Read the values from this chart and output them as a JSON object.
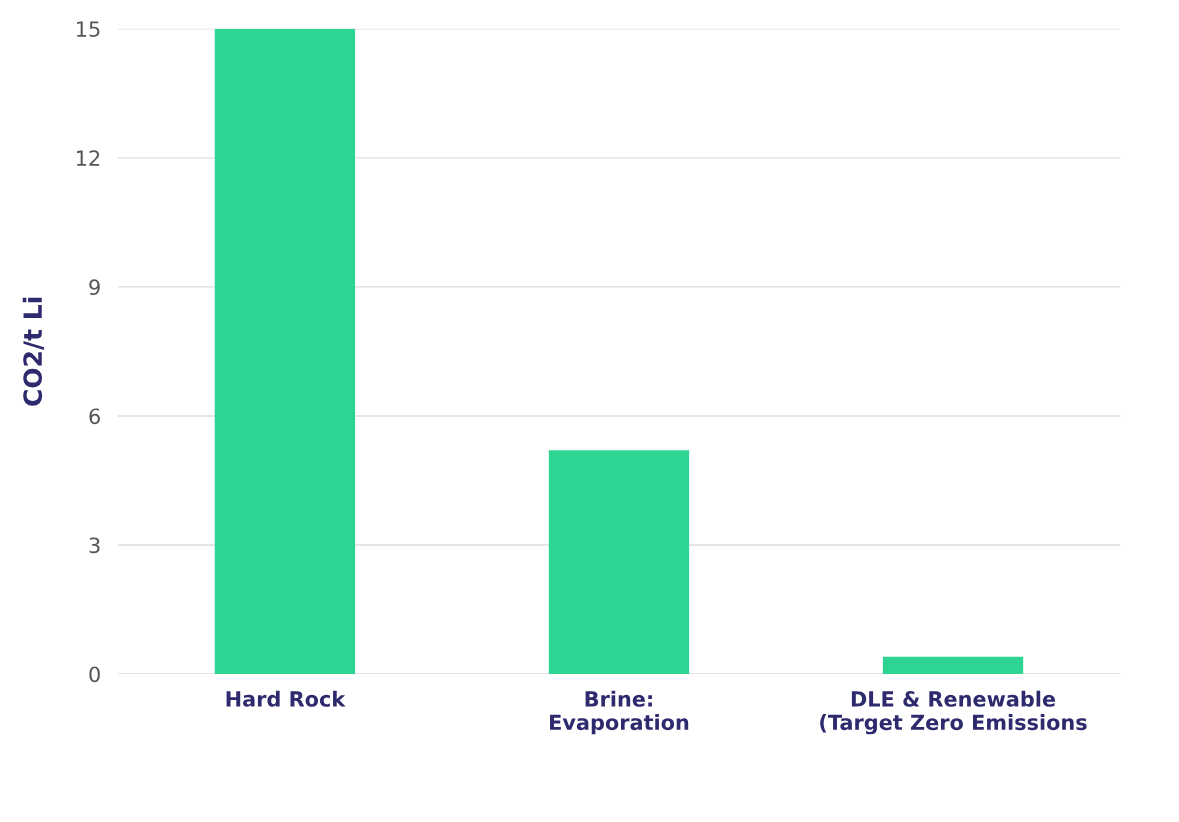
{
  "chart_data": {
    "type": "bar",
    "ylabel": "CO2/t Li",
    "categories": [
      "Hard Rock",
      "Brine:\nEvaporation",
      "DLE & Renewable\n(Target Zero Emissions"
    ],
    "values": [
      15,
      5.2,
      0.4
    ],
    "color": "#2dd492",
    "ylim": [
      0,
      15
    ],
    "yticks": [
      0,
      3,
      6,
      9,
      12,
      15
    ],
    "grid": "y"
  }
}
